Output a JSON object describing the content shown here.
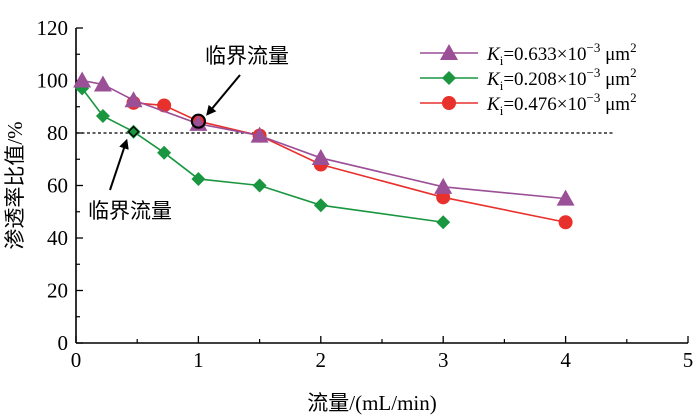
{
  "chart_data": {
    "type": "line",
    "xlabel": "流量/(mL/min)",
    "ylabel": "渗透率比值/%",
    "xlim": [
      0,
      5
    ],
    "ylim": [
      0,
      120
    ],
    "xticks": [
      "0",
      "1",
      "2",
      "3",
      "4",
      "5"
    ],
    "yticks": [
      "0",
      "20",
      "40",
      "60",
      "80",
      "100",
      "120"
    ],
    "legend_position": "top-right",
    "series": [
      {
        "name": "Ki=0.633×10−3 μm2",
        "legend": {
          "k": "K",
          "sub": "i",
          "coef": "=0.633×10",
          "exp": "−3",
          "unit": " μm",
          "unit_exp": "2"
        },
        "marker": "triangle",
        "color": "#9b4f96",
        "x": [
          0.05,
          0.22,
          0.47,
          1.0,
          1.5,
          2.0,
          3.0,
          4.0
        ],
        "y": [
          100.0,
          98.5,
          92.5,
          83.5,
          79.0,
          70.5,
          59.5,
          55.0
        ]
      },
      {
        "name": "Ki=0.208×10−3 μm2",
        "legend": {
          "k": "K",
          "sub": "i",
          "coef": "=0.208×10",
          "exp": "−3",
          "unit": " μm",
          "unit_exp": "2"
        },
        "marker": "diamond",
        "color": "#1a9640",
        "x": [
          0.05,
          0.22,
          0.47,
          0.72,
          1.0,
          1.5,
          2.0,
          3.0
        ],
        "y": [
          97.0,
          86.5,
          80.5,
          72.5,
          62.5,
          60.0,
          52.5,
          46.0
        ]
      },
      {
        "name": "Ki=0.476×10−3 μm2",
        "legend": {
          "k": "K",
          "sub": "i",
          "coef": "=0.476×10",
          "exp": "−3",
          "unit": " μm",
          "unit_exp": "2"
        },
        "marker": "circle",
        "color": "#e8302c",
        "x": [
          0.47,
          0.72,
          1.0,
          1.5,
          2.0,
          3.0,
          4.0
        ],
        "y": [
          91.5,
          90.5,
          84.5,
          79.0,
          68.0,
          55.5,
          46.0
        ]
      }
    ],
    "reference_line": {
      "y": 80,
      "x_end": 4.4,
      "style": "dotted"
    },
    "annotations": [
      {
        "text": "临界流量",
        "target_series": 2,
        "target_x": 1.0,
        "target_y": 84.5
      },
      {
        "text": "临界流量",
        "target_series": 1,
        "target_x": 0.47,
        "target_y": 80.5
      }
    ]
  }
}
